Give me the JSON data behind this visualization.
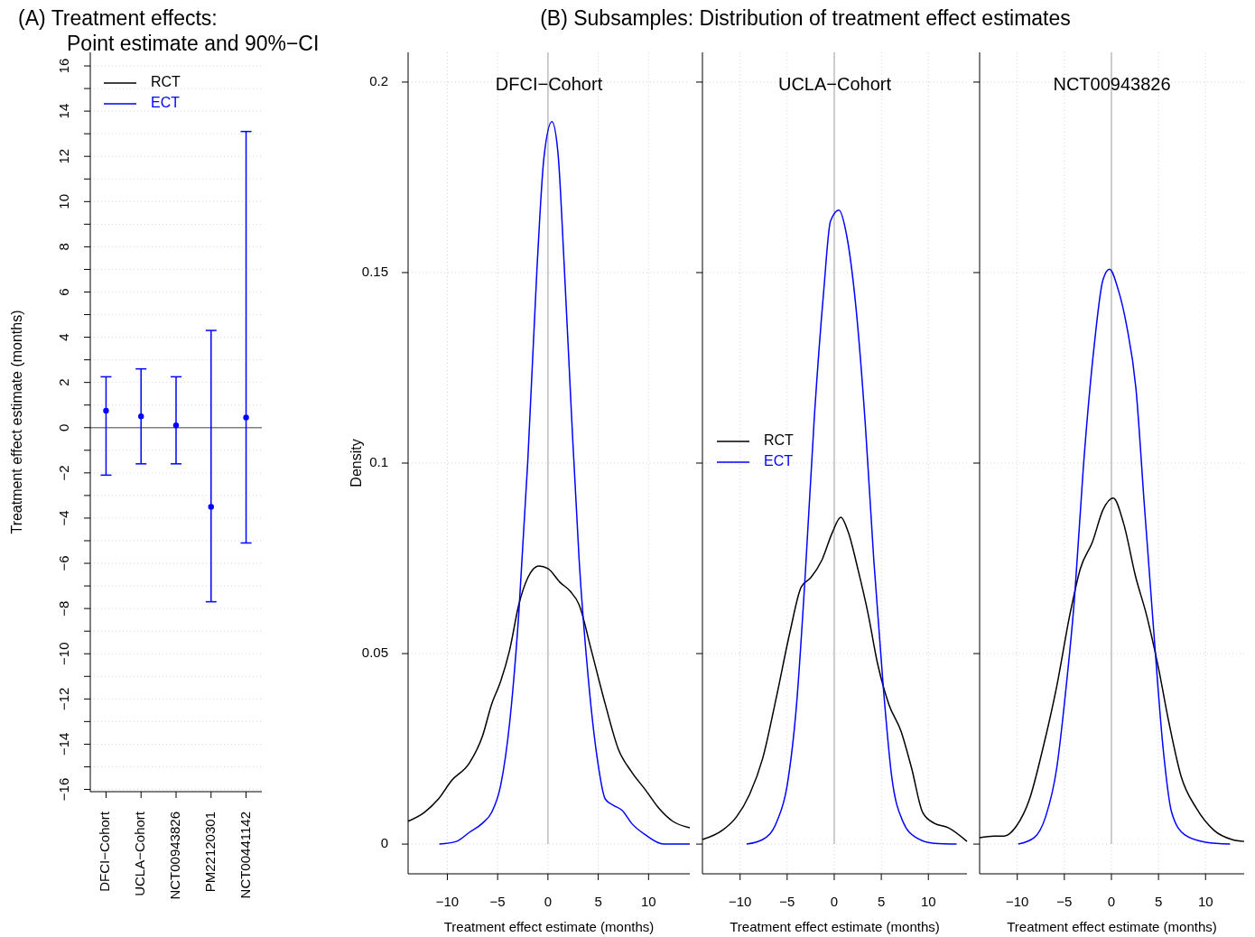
{
  "chart_data": [
    {
      "type": "scatter",
      "title": "(A) Treatment effects:\nPoint estimate and 90%−CI",
      "ylabel": "Treatment effect estimate (months)",
      "categories": [
        "DFCI−Cohort",
        "UCLA−Cohort",
        "NCT00943826",
        "PM22120301",
        "NCT00441142"
      ],
      "ylim": [
        -16.1,
        16.6
      ],
      "yticks": [
        {
          "value": -16,
          "label": "−16"
        },
        {
          "value": -15,
          "label": null
        },
        {
          "value": -14,
          "label": "−14"
        },
        {
          "value": -13,
          "label": null
        },
        {
          "value": -12,
          "label": "−12"
        },
        {
          "value": -11,
          "label": null
        },
        {
          "value": -10,
          "label": "−10"
        },
        {
          "value": -9,
          "label": null
        },
        {
          "value": -8,
          "label": "−8"
        },
        {
          "value": -7,
          "label": null
        },
        {
          "value": -6,
          "label": "−6"
        },
        {
          "value": -5,
          "label": null
        },
        {
          "value": -4,
          "label": "−4"
        },
        {
          "value": -3,
          "label": null
        },
        {
          "value": -2,
          "label": "−2"
        },
        {
          "value": -1,
          "label": null
        },
        0,
        {
          "value": 1,
          "label": null
        },
        2,
        {
          "value": 3,
          "label": null
        },
        4,
        {
          "value": 5,
          "label": null
        },
        6,
        {
          "value": 7,
          "label": null
        },
        8,
        {
          "value": 9,
          "label": null
        },
        10,
        {
          "value": 11,
          "label": null
        },
        12,
        {
          "value": 13,
          "label": null
        },
        14,
        {
          "value": 15,
          "label": null
        },
        16
      ],
      "grid": "y",
      "legend": "top left",
      "marker": "circle",
      "ref_lines": [
        {
          "axis": "y",
          "value": 0,
          "color": "#808080"
        }
      ],
      "series": [
        {
          "name": "RCT",
          "color": "#000000",
          "values": [
            null,
            null,
            null,
            null,
            null
          ]
        },
        {
          "name": "ECT",
          "color": "#0000ff",
          "values": [
            0.75,
            0.5,
            0.1,
            -3.5,
            0.45
          ],
          "errors": [
            [
              -2.1,
              2.25
            ],
            [
              -1.6,
              2.6
            ],
            [
              -1.6,
              2.25
            ],
            [
              -7.7,
              4.3
            ],
            [
              -5.1,
              13.1
            ]
          ]
        }
      ]
    },
    {
      "type": "line",
      "title": "(B) Subsamples: Distribution of treatment effect estimates",
      "subtitle": "DFCI−Cohort",
      "xlabel": "Treatment effect estimate (months)",
      "ylabel": "Density",
      "xlim": [
        -13.9,
        14.1
      ],
      "ylim": [
        -0.0078,
        0.2078
      ],
      "xticks": [
        -10,
        -5,
        0,
        5,
        10
      ],
      "yticks": [
        0,
        0.05,
        0.1,
        0.15,
        0.2
      ],
      "grid": true,
      "ref_lines": [
        {
          "axis": "x",
          "value": 0,
          "color": "#bebebe"
        }
      ],
      "series": [
        {
          "color": "#000000",
          "x": [
            -13.9,
            -12.3,
            -10.9,
            -9.6,
            -7.8,
            -6.5,
            -5.6,
            -4.7,
            -3.8,
            -2.9,
            -2.0,
            -0.9,
            0,
            1.2,
            2.2,
            3.1,
            4.3,
            5.7,
            7.0,
            8.3,
            9.7,
            11.0,
            12.4,
            14.1
          ],
          "values": [
            0.006,
            0.0083,
            0.0118,
            0.0166,
            0.0213,
            0.0284,
            0.0367,
            0.0427,
            0.051,
            0.0628,
            0.0699,
            0.073,
            0.0723,
            0.0687,
            0.0664,
            0.0628,
            0.051,
            0.0367,
            0.0249,
            0.019,
            0.0142,
            0.0095,
            0.006,
            0.0043
          ]
        },
        {
          "color": "#0000ff",
          "x": [
            -10.8,
            -9.1,
            -7.8,
            -6.5,
            -5.6,
            -4.7,
            -3.8,
            -2.9,
            -2.0,
            -1.1,
            -0.4,
            0.4,
            1.0,
            1.6,
            2.3,
            3.1,
            4.0,
            4.9,
            5.7,
            6.5,
            7.4,
            8.3,
            9.7,
            11.5,
            14.1
          ],
          "values": [
            0,
            0.0007,
            0.0031,
            0.0055,
            0.0083,
            0.0154,
            0.032,
            0.0604,
            0.1007,
            0.1505,
            0.1801,
            0.1896,
            0.1813,
            0.1528,
            0.1149,
            0.0746,
            0.0438,
            0.0225,
            0.0118,
            0.0102,
            0.0088,
            0.0055,
            0.0024,
            0,
            0
          ]
        }
      ]
    },
    {
      "type": "line",
      "subtitle": "UCLA−Cohort",
      "xlabel": "Treatment effect estimate (months)",
      "xlim": [
        -14,
        14.1
      ],
      "ylim": [
        -0.0078,
        0.2078
      ],
      "xticks": [
        -10,
        -5,
        0,
        5,
        10
      ],
      "yticks": [
        0,
        0.05,
        0.1,
        0.15,
        0.2
      ],
      "tick_labels": "x",
      "grid": true,
      "legend": "left",
      "ref_lines": [
        {
          "axis": "x",
          "value": 0,
          "color": "#bebebe"
        }
      ],
      "series": [
        {
          "name": "RCT",
          "color": "#000000",
          "x": [
            -14.0,
            -11.9,
            -10.4,
            -9.0,
            -7.6,
            -6.1,
            -4.7,
            -3.5,
            -2.5,
            -1.3,
            -0.2,
            0.7,
            1.5,
            2.5,
            3.6,
            4.6,
            5.8,
            7.1,
            8.2,
            9.4,
            10.6,
            12.1,
            14.1
          ],
          "values": [
            0.0012,
            0.0036,
            0.0071,
            0.013,
            0.0225,
            0.0391,
            0.0557,
            0.0675,
            0.0699,
            0.0746,
            0.0818,
            0.0858,
            0.0818,
            0.0723,
            0.0604,
            0.0474,
            0.0367,
            0.0296,
            0.0201,
            0.0083,
            0.0055,
            0.0043,
            0.0007
          ]
        },
        {
          "name": "ECT",
          "color": "#0000ff",
          "x": [
            -9.3,
            -7.6,
            -6.1,
            -5.0,
            -4.0,
            -3.1,
            -2.1,
            -1.1,
            -0.4,
            0.5,
            1.3,
            2.3,
            3.3,
            4.2,
            5.2,
            6.1,
            7.3,
            8.7,
            10.6,
            13.0
          ],
          "values": [
            0,
            0.0012,
            0.0059,
            0.0154,
            0.0367,
            0.0699,
            0.1126,
            0.1457,
            0.1635,
            0.1664,
            0.16,
            0.141,
            0.1102,
            0.0746,
            0.0415,
            0.0178,
            0.0059,
            0.0017,
            0.0002,
            0
          ]
        }
      ]
    },
    {
      "type": "line",
      "subtitle": "NCT00943826",
      "xlabel": "Treatment effect estimate (months)",
      "xlim": [
        -14,
        14.1
      ],
      "ylim": [
        -0.0078,
        0.2078
      ],
      "xticks": [
        -10,
        -5,
        0,
        5,
        10
      ],
      "yticks": [
        0,
        0.05,
        0.1,
        0.15,
        0.2
      ],
      "tick_labels": "x",
      "grid": true,
      "ref_lines": [
        {
          "axis": "x",
          "value": 0,
          "color": "#bebebe"
        }
      ],
      "series": [
        {
          "color": "#000000",
          "x": [
            -14.0,
            -12.5,
            -11.4,
            -10.1,
            -8.7,
            -7.3,
            -5.8,
            -4.4,
            -3.3,
            -2.0,
            -0.9,
            0.2,
            1.3,
            2.6,
            3.7,
            5.0,
            6.1,
            7.4,
            9.0,
            10.9,
            12.8,
            14.1
          ],
          "values": [
            0.0017,
            0.0021,
            0.0021,
            0.0047,
            0.0118,
            0.0249,
            0.0415,
            0.0604,
            0.0723,
            0.0794,
            0.0877,
            0.0908,
            0.0841,
            0.0699,
            0.0604,
            0.0462,
            0.032,
            0.0178,
            0.0095,
            0.0036,
            0.0012,
            0.0007
          ]
        },
        {
          "color": "#0000ff",
          "x": [
            -9.9,
            -8.2,
            -7.0,
            -5.8,
            -4.9,
            -3.9,
            -3.0,
            -1.8,
            -0.9,
            -0.2,
            0.7,
            1.6,
            2.6,
            3.5,
            4.5,
            5.5,
            6.4,
            7.8,
            10.0,
            12.6
          ],
          "values": [
            0,
            0.0017,
            0.0071,
            0.0201,
            0.0391,
            0.0652,
            0.0983,
            0.1315,
            0.1481,
            0.1509,
            0.1457,
            0.1363,
            0.1197,
            0.0889,
            0.0557,
            0.0249,
            0.0083,
            0.0024,
            0.0005,
            0
          ]
        }
      ]
    }
  ]
}
